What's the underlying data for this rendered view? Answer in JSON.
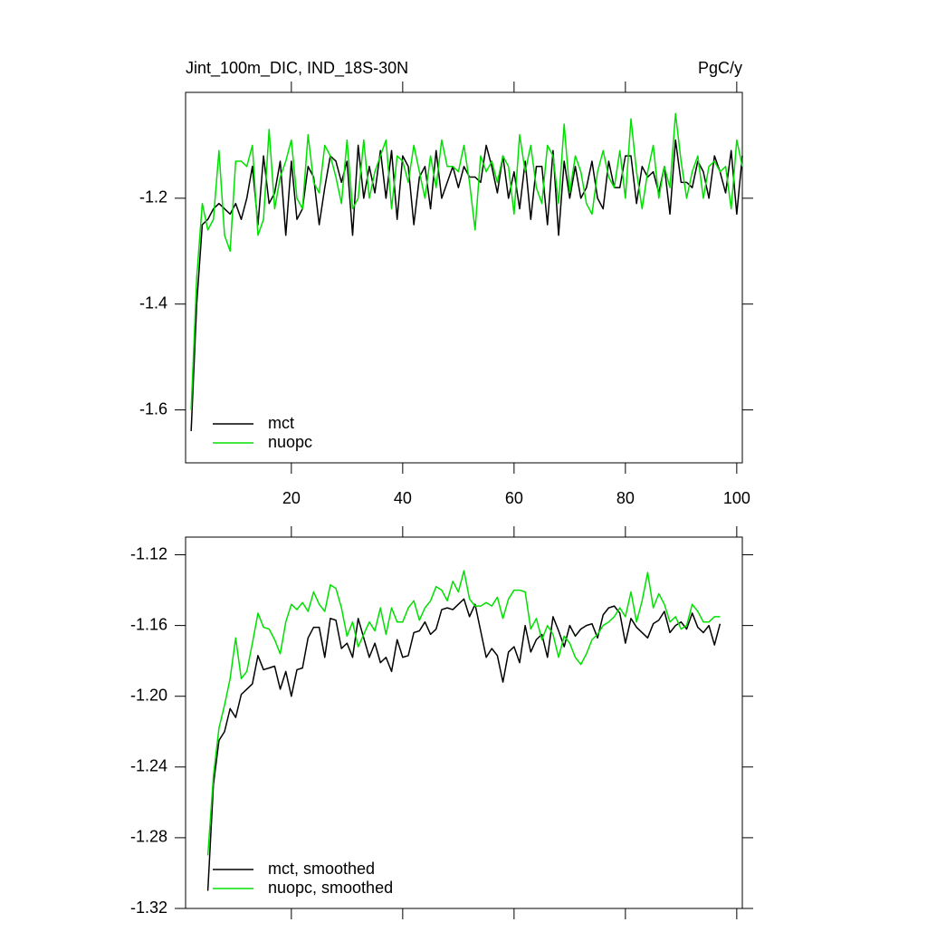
{
  "chart_data": [
    {
      "type": "line",
      "title": "Jint_100m_DIC, IND_18S-30N",
      "units": "PgC/y",
      "xlim": [
        1,
        101
      ],
      "ylim": [
        -1.7,
        -1.0
      ],
      "xticks": [
        20,
        40,
        60,
        80,
        100
      ],
      "yticks": [
        -1.6,
        -1.4,
        -1.2
      ],
      "xtick_labels": true,
      "legend": "lower left",
      "x": [
        2,
        3,
        4,
        5,
        6,
        7,
        8,
        9,
        10,
        11,
        12,
        13,
        14,
        15,
        16,
        17,
        18,
        19,
        20,
        21,
        22,
        23,
        24,
        25,
        26,
        27,
        28,
        29,
        30,
        31,
        32,
        33,
        34,
        35,
        36,
        37,
        38,
        39,
        40,
        41,
        42,
        43,
        44,
        45,
        46,
        47,
        48,
        49,
        50,
        51,
        52,
        53,
        54,
        55,
        56,
        57,
        58,
        59,
        60,
        61,
        62,
        63,
        64,
        65,
        66,
        67,
        68,
        69,
        70,
        71,
        72,
        73,
        74,
        75,
        76,
        77,
        78,
        79,
        80,
        81,
        82,
        83,
        84,
        85,
        86,
        87,
        88,
        89,
        90,
        91,
        92,
        93,
        94,
        95,
        96,
        97,
        98,
        99,
        100,
        101
      ],
      "series": [
        {
          "name": "mct",
          "color": "#000000",
          "values": [
            -1.64,
            -1.4,
            -1.25,
            -1.24,
            -1.22,
            -1.21,
            -1.22,
            -1.23,
            -1.21,
            -1.24,
            -1.2,
            -1.14,
            -1.25,
            -1.12,
            -1.21,
            -1.19,
            -1.13,
            -1.27,
            -1.13,
            -1.24,
            -1.22,
            -1.14,
            -1.16,
            -1.25,
            -1.18,
            -1.12,
            -1.13,
            -1.17,
            -1.13,
            -1.27,
            -1.1,
            -1.2,
            -1.14,
            -1.19,
            -1.11,
            -1.2,
            -1.11,
            -1.24,
            -1.12,
            -1.14,
            -1.25,
            -1.16,
            -1.14,
            -1.22,
            -1.11,
            -1.2,
            -1.17,
            -1.14,
            -1.18,
            -1.14,
            -1.16,
            -1.16,
            -1.17,
            -1.1,
            -1.14,
            -1.19,
            -1.12,
            -1.2,
            -1.15,
            -1.22,
            -1.13,
            -1.24,
            -1.14,
            -1.14,
            -1.25,
            -1.11,
            -1.27,
            -1.13,
            -1.2,
            -1.14,
            -1.2,
            -1.18,
            -1.13,
            -1.2,
            -1.22,
            -1.13,
            -1.18,
            -1.18,
            -1.12,
            -1.12,
            -1.21,
            -1.14,
            -1.16,
            -1.15,
            -1.19,
            -1.14,
            -1.23,
            -1.09,
            -1.17,
            -1.17,
            -1.18,
            -1.13,
            -1.15,
            -1.2,
            -1.12,
            -1.15,
            -1.19,
            -1.11,
            -1.23,
            -1.12
          ]
        },
        {
          "name": "nuopc",
          "color": "#00e000",
          "values": [
            -1.6,
            -1.35,
            -1.21,
            -1.26,
            -1.24,
            -1.11,
            -1.27,
            -1.3,
            -1.13,
            -1.13,
            -1.14,
            -1.1,
            -1.27,
            -1.24,
            -1.07,
            -1.22,
            -1.16,
            -1.13,
            -1.09,
            -1.2,
            -1.22,
            -1.08,
            -1.17,
            -1.19,
            -1.1,
            -1.12,
            -1.16,
            -1.21,
            -1.09,
            -1.22,
            -1.2,
            -1.09,
            -1.2,
            -1.15,
            -1.12,
            -1.09,
            -1.22,
            -1.12,
            -1.13,
            -1.17,
            -1.1,
            -1.15,
            -1.2,
            -1.12,
            -1.18,
            -1.09,
            -1.14,
            -1.14,
            -1.15,
            -1.1,
            -1.17,
            -1.26,
            -1.12,
            -1.15,
            -1.13,
            -1.17,
            -1.12,
            -1.14,
            -1.23,
            -1.08,
            -1.15,
            -1.1,
            -1.18,
            -1.21,
            -1.1,
            -1.12,
            -1.21,
            -1.06,
            -1.19,
            -1.12,
            -1.15,
            -1.21,
            -1.23,
            -1.15,
            -1.11,
            -1.16,
            -1.18,
            -1.11,
            -1.2,
            -1.05,
            -1.15,
            -1.22,
            -1.15,
            -1.1,
            -1.2,
            -1.14,
            -1.18,
            -1.04,
            -1.13,
            -1.2,
            -1.15,
            -1.12,
            -1.2,
            -1.14,
            -1.13,
            -1.15,
            -1.14,
            -1.22,
            -1.09,
            -1.14
          ]
        }
      ]
    },
    {
      "type": "line",
      "xlim": [
        1,
        101
      ],
      "ylim": [
        -1.32,
        -1.11
      ],
      "xticks": [
        20,
        40,
        60,
        80,
        100
      ],
      "xtick_labels": false,
      "yticks": [
        -1.12,
        -1.16,
        {
          "value": -1.2,
          "label": "-1.20"
        },
        -1.24,
        -1.28,
        -1.32
      ],
      "legend": "lower left",
      "x": [
        5,
        6,
        7,
        8,
        9,
        10,
        11,
        12,
        13,
        14,
        15,
        16,
        17,
        18,
        19,
        20,
        21,
        22,
        23,
        24,
        25,
        26,
        27,
        28,
        29,
        30,
        31,
        32,
        33,
        34,
        35,
        36,
        37,
        38,
        39,
        40,
        41,
        42,
        43,
        44,
        45,
        46,
        47,
        48,
        49,
        50,
        51,
        52,
        53,
        54,
        55,
        56,
        57,
        58,
        59,
        60,
        61,
        62,
        63,
        64,
        65,
        66,
        67,
        68,
        69,
        70,
        71,
        72,
        73,
        74,
        75,
        76,
        77,
        78,
        79,
        80,
        81,
        82,
        83,
        84,
        85,
        86,
        87,
        88,
        89,
        90,
        91,
        92,
        93,
        94,
        95,
        96,
        97
      ],
      "series": [
        {
          "name": "mct, smoothed",
          "color": "#000000",
          "values": [
            -1.31,
            -1.25,
            -1.225,
            -1.22,
            -1.207,
            -1.212,
            -1.199,
            -1.196,
            -1.193,
            -1.177,
            -1.185,
            -1.184,
            -1.183,
            -1.196,
            -1.186,
            -1.2,
            -1.185,
            -1.184,
            -1.167,
            -1.161,
            -1.161,
            -1.178,
            -1.156,
            -1.157,
            -1.173,
            -1.17,
            -1.178,
            -1.156,
            -1.167,
            -1.178,
            -1.17,
            -1.181,
            -1.178,
            -1.186,
            -1.168,
            -1.178,
            -1.177,
            -1.164,
            -1.163,
            -1.158,
            -1.165,
            -1.162,
            -1.151,
            -1.15,
            -1.151,
            -1.148,
            -1.145,
            -1.155,
            -1.148,
            -1.163,
            -1.178,
            -1.173,
            -1.177,
            -1.192,
            -1.175,
            -1.172,
            -1.181,
            -1.16,
            -1.175,
            -1.168,
            -1.165,
            -1.178,
            -1.155,
            -1.163,
            -1.172,
            -1.16,
            -1.166,
            -1.162,
            -1.16,
            -1.159,
            -1.167,
            -1.154,
            -1.15,
            -1.149,
            -1.153,
            -1.17,
            -1.156,
            -1.161,
            -1.164,
            -1.167,
            -1.159,
            -1.157,
            -1.152,
            -1.164,
            -1.16,
            -1.158,
            -1.162,
            -1.153,
            -1.161,
            -1.164,
            -1.16,
            -1.171,
            -1.159
          ]
        },
        {
          "name": "nuopc, smoothed",
          "color": "#00e000",
          "values": [
            -1.29,
            -1.245,
            -1.218,
            -1.205,
            -1.19,
            -1.167,
            -1.19,
            -1.186,
            -1.17,
            -1.153,
            -1.161,
            -1.162,
            -1.168,
            -1.176,
            -1.158,
            -1.148,
            -1.151,
            -1.147,
            -1.152,
            -1.141,
            -1.148,
            -1.152,
            -1.137,
            -1.139,
            -1.15,
            -1.166,
            -1.158,
            -1.172,
            -1.165,
            -1.158,
            -1.163,
            -1.15,
            -1.165,
            -1.15,
            -1.158,
            -1.158,
            -1.15,
            -1.146,
            -1.157,
            -1.15,
            -1.146,
            -1.138,
            -1.14,
            -1.146,
            -1.135,
            -1.141,
            -1.129,
            -1.145,
            -1.149,
            -1.149,
            -1.147,
            -1.149,
            -1.144,
            -1.156,
            -1.145,
            -1.14,
            -1.14,
            -1.141,
            -1.162,
            -1.156,
            -1.168,
            -1.16,
            -1.165,
            -1.178,
            -1.166,
            -1.17,
            -1.178,
            -1.182,
            -1.176,
            -1.168,
            -1.165,
            -1.16,
            -1.158,
            -1.155,
            -1.15,
            -1.155,
            -1.141,
            -1.158,
            -1.146,
            -1.13,
            -1.15,
            -1.142,
            -1.148,
            -1.158,
            -1.155,
            -1.162,
            -1.16,
            -1.148,
            -1.152,
            -1.158,
            -1.158,
            -1.155,
            -1.155
          ]
        }
      ]
    }
  ]
}
